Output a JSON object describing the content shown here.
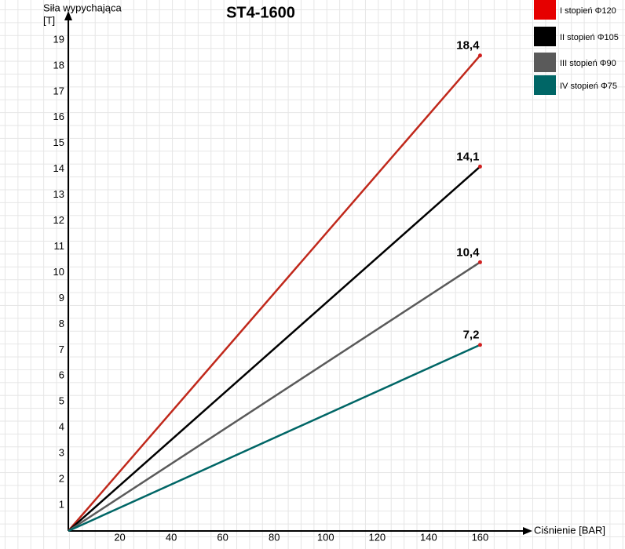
{
  "chart_data": {
    "type": "line",
    "title": "ST4-1600",
    "y_label": [
      "Siła wypychająca",
      "[T]"
    ],
    "x_label": "Ciśnienie [BAR]",
    "xlim": [
      0,
      180
    ],
    "xticks": [
      20,
      40,
      60,
      80,
      100,
      120,
      140,
      160
    ],
    "ylim": [
      0,
      20
    ],
    "yticks": [
      1,
      2,
      3,
      4,
      5,
      6,
      7,
      8,
      9,
      10,
      11,
      12,
      13,
      14,
      15,
      16,
      17,
      18,
      19
    ],
    "series": [
      {
        "name": "I stopień Φ120",
        "legend_color": "#e60000",
        "color": "#c0281b",
        "x": [
          0,
          160
        ],
        "values": [
          0,
          18.4
        ],
        "value_labels": [
          null,
          "18,4"
        ]
      },
      {
        "name": "II stopień Φ105",
        "legend_color": "#000000",
        "color": "#000000",
        "x": [
          0,
          160
        ],
        "values": [
          0,
          14.1
        ],
        "value_labels": [
          null,
          "14,1"
        ]
      },
      {
        "name": "III stopień Φ90",
        "legend_color": "#5a5a5a",
        "color": "#5a5a5a",
        "x": [
          0,
          160
        ],
        "values": [
          0,
          10.4
        ],
        "value_labels": [
          null,
          "10,4"
        ]
      },
      {
        "name": "IV stopień Φ75",
        "legend_color": "#006666",
        "color": "#006666",
        "x": [
          0,
          160
        ],
        "values": [
          0,
          7.2
        ],
        "value_labels": [
          null,
          "7,2"
        ]
      }
    ]
  }
}
